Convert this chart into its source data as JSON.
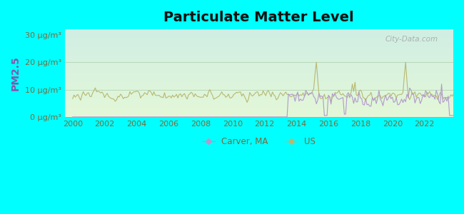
{
  "title": "Particulate Matter Level",
  "ylabel": "PM2.5",
  "background_color": "#00FFFF",
  "ylim": [
    0,
    32
  ],
  "xlim": [
    1999.5,
    2023.8
  ],
  "yticks": [
    0,
    10,
    20,
    30
  ],
  "ytick_labels": [
    "0 μg/m³",
    "10 μg/m³",
    "20 μg/m³",
    "30 μg/m³"
  ],
  "xticks": [
    2000,
    2002,
    2004,
    2006,
    2008,
    2010,
    2012,
    2014,
    2016,
    2018,
    2020,
    2022
  ],
  "carver_color": "#b399cc",
  "us_color": "#b8b870",
  "label_color": "#7a6a3a",
  "ylabel_color": "#8855aa",
  "legend_carver": "Carver, MA",
  "legend_us": "US",
  "watermark": "City-Data.com",
  "plot_bg_top": "#d8f0e0",
  "plot_bg_bottom": "#eefae8",
  "grid_color": "#c0dcc0",
  "title_fontsize": 14,
  "tick_fontsize": 8,
  "ylabel_fontsize": 10
}
